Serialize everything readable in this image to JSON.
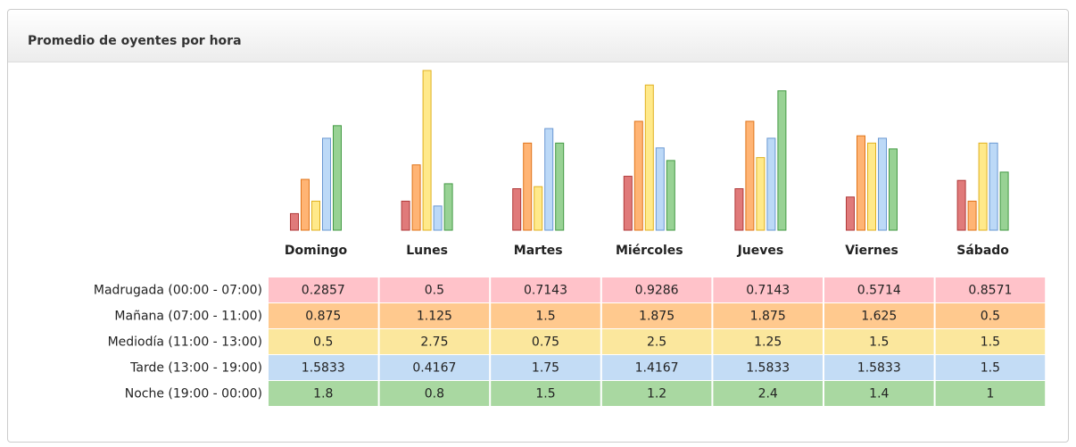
{
  "chart_data": {
    "type": "bar",
    "title": "Promedio de oyentes por hora",
    "categories": [
      "Domingo",
      "Lunes",
      "Martes",
      "Miércoles",
      "Jueves",
      "Viernes",
      "Sábado"
    ],
    "series": [
      {
        "name": "Madrugada (00:00 - 07:00)",
        "color": "#ffc2c9",
        "bar_color": "#e07a7a",
        "stroke": "#b03a3a",
        "values": [
          0.2857,
          0.5,
          0.7143,
          0.9286,
          0.7143,
          0.5714,
          0.8571
        ]
      },
      {
        "name": "Mañana (07:00 - 11:00)",
        "color": "#ffc98e",
        "bar_color": "#ffb474",
        "stroke": "#e0741a",
        "values": [
          0.875,
          1.125,
          1.5,
          1.875,
          1.875,
          1.625,
          0.5
        ]
      },
      {
        "name": "Mediodía (11:00 - 13:00)",
        "color": "#fbe79d",
        "bar_color": "#ffe98a",
        "stroke": "#e0b020",
        "values": [
          0.5,
          2.75,
          0.75,
          2.5,
          1.25,
          1.5,
          1.5
        ]
      },
      {
        "name": "Tarde (13:00 - 19:00)",
        "color": "#c3dcf5",
        "bar_color": "#bcd9f7",
        "stroke": "#6a98d2",
        "values": [
          1.5833,
          0.4167,
          1.75,
          1.4167,
          1.5833,
          1.5833,
          1.5
        ]
      },
      {
        "name": "Noche (19:00 - 00:00)",
        "color": "#a9d8a1",
        "bar_color": "#98d294",
        "stroke": "#449a44",
        "values": [
          1.8,
          0.8,
          1.5,
          1.2,
          2.4,
          1.4,
          1
        ]
      }
    ]
  }
}
